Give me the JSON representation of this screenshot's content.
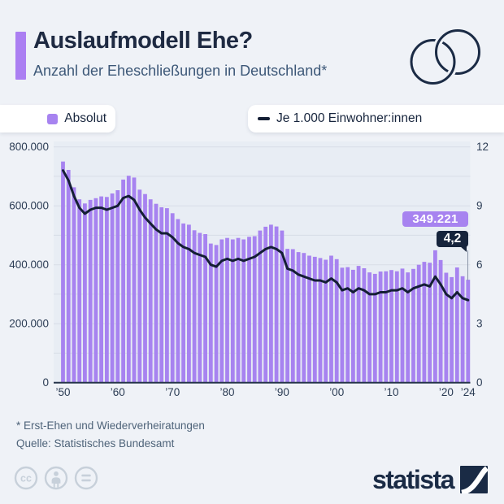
{
  "header": {
    "title": "Auslaufmodell Ehe?",
    "subtitle": "Anzahl der Eheschließungen in Deutschland*"
  },
  "legend": {
    "absolute_label": "Absolut",
    "rate_label": "Je 1.000 Einwohner:innen"
  },
  "annotations": {
    "absolute_value": "349.221",
    "rate_value": "4,2"
  },
  "footer": {
    "note": "* Erst-Ehen und Wiederverheiratungen",
    "source": "Quelle: Statistisches Bundesamt",
    "license_icons": [
      "cc-icon",
      "attribution-person-icon",
      "equals-nd-icon"
    ],
    "brand": "statista"
  },
  "colors": {
    "purple": "#a783f0",
    "navy": "#26344b",
    "line": "#141e34",
    "page_bg": "#eff2f7",
    "plot_bg": "#e8edf4",
    "grid": "#d7dde7",
    "axis_text": "#2c3d55",
    "dropline": "#8b95a8",
    "license_gray": "#c7d0da"
  },
  "chart_data": {
    "type": "bar+line",
    "title": "Auslaufmodell Ehe?",
    "subtitle": "Anzahl der Eheschließungen in Deutschland*",
    "years": {
      "start": 1950,
      "end": 2024
    },
    "legend_position": "top",
    "grid": true,
    "left_axis": {
      "label": "Absolut",
      "range": [
        0,
        800000
      ],
      "gridline_step": 100000,
      "ticks": [
        "800.000",
        "600.000",
        "400.000",
        "200.000",
        "0"
      ]
    },
    "right_axis": {
      "label": "Je 1.000 Einwohner:innen",
      "range": [
        0,
        12
      ],
      "ticks": [
        "12",
        "9",
        "6",
        "3",
        "0"
      ]
    },
    "xticks": [
      {
        "label": "’50",
        "year": 1950
      },
      {
        "label": "’60",
        "year": 1960
      },
      {
        "label": "’70",
        "year": 1970
      },
      {
        "label": "’80",
        "year": 1980
      },
      {
        "label": "’90",
        "year": 1990
      },
      {
        "label": "’00",
        "year": 2000
      },
      {
        "label": "’10",
        "year": 2010
      },
      {
        "label": "’20",
        "year": 2020
      },
      {
        "label": "’24",
        "year": 2024
      }
    ],
    "series": [
      {
        "name": "Absolut",
        "type": "bar",
        "axis": "left",
        "values": [
          750400,
          722000,
          663000,
          622000,
          608000,
          620000,
          626000,
          632000,
          630000,
          642000,
          653000,
          689000,
          702000,
          696000,
          655000,
          640000,
          622000,
          607000,
          595000,
          592000,
          575000,
          555000,
          540000,
          536000,
          517000,
          508000,
          504000,
          472000,
          467000,
          486000,
          491000,
          486000,
          491000,
          486000,
          495000,
          497000,
          516000,
          529000,
          536000,
          530000,
          516000,
          454000,
          453000,
          443000,
          440000,
          431000,
          427000,
          423000,
          417000,
          431000,
          419000,
          390000,
          392000,
          383000,
          396000,
          388000,
          374000,
          369000,
          377000,
          378000,
          382000,
          378000,
          387000,
          374000,
          386000,
          400000,
          410000,
          407000,
          449000,
          416000,
          373000,
          358000,
          391000,
          361000,
          349221
        ]
      },
      {
        "name": "Je 1.000 Einwohner:innen",
        "type": "line",
        "axis": "right",
        "values": [
          10.8,
          10.3,
          9.5,
          8.9,
          8.6,
          8.8,
          8.9,
          8.9,
          8.8,
          8.9,
          9.0,
          9.4,
          9.5,
          9.3,
          8.8,
          8.4,
          8.1,
          7.8,
          7.6,
          7.6,
          7.4,
          7.1,
          6.9,
          6.8,
          6.6,
          6.5,
          6.4,
          6.0,
          5.9,
          6.2,
          6.3,
          6.2,
          6.3,
          6.2,
          6.3,
          6.4,
          6.6,
          6.8,
          6.9,
          6.8,
          6.6,
          5.8,
          5.7,
          5.5,
          5.4,
          5.3,
          5.2,
          5.2,
          5.1,
          5.3,
          5.1,
          4.7,
          4.8,
          4.6,
          4.8,
          4.7,
          4.5,
          4.5,
          4.6,
          4.6,
          4.7,
          4.7,
          4.8,
          4.6,
          4.8,
          4.9,
          5.0,
          4.9,
          5.4,
          5.0,
          4.5,
          4.3,
          4.6,
          4.3,
          4.2
        ]
      }
    ],
    "highlight": {
      "year": 2024,
      "absolute_label": "349.221",
      "rate_label": "4,2"
    }
  }
}
